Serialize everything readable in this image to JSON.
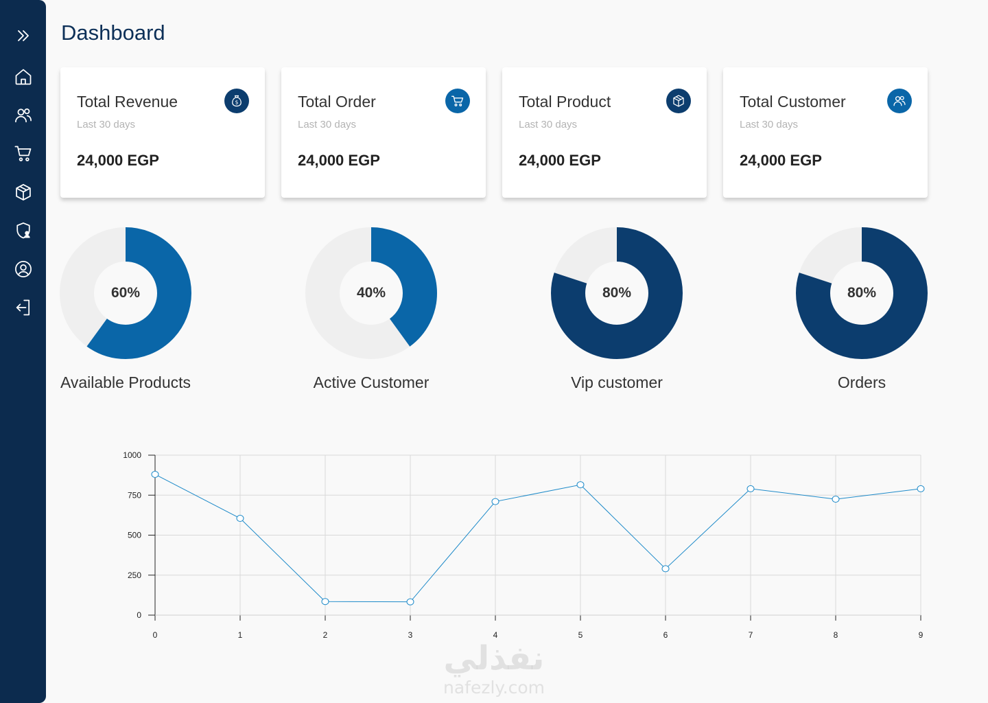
{
  "page": {
    "title": "Dashboard"
  },
  "sidebar": {
    "items": [
      {
        "name": "expand",
        "icon": "double-chevron-right-icon"
      },
      {
        "name": "home",
        "icon": "home-icon"
      },
      {
        "name": "users",
        "icon": "users-icon"
      },
      {
        "name": "cart",
        "icon": "cart-icon"
      },
      {
        "name": "products",
        "icon": "box-icon"
      },
      {
        "name": "security",
        "icon": "shield-user-icon"
      },
      {
        "name": "profile",
        "icon": "user-circle-icon"
      },
      {
        "name": "logout",
        "icon": "logout-icon"
      }
    ]
  },
  "cards": [
    {
      "title": "Total Revenue",
      "subtitle": "Last 30 days",
      "value": "24,000 EGP",
      "icon": "money-bag-icon",
      "icon_color": "#0c3d6e"
    },
    {
      "title": "Total Order",
      "subtitle": "Last 30 days",
      "value": "24,000 EGP",
      "icon": "cart-icon",
      "icon_color": "#0a66a8"
    },
    {
      "title": "Total Product",
      "subtitle": "Last 30 days",
      "value": "24,000 EGP",
      "icon": "box-icon",
      "icon_color": "#0c3d6e"
    },
    {
      "title": "Total Customer",
      "subtitle": "Last 30 days",
      "value": "24,000 EGP",
      "icon": "users-icon",
      "icon_color": "#0a66a8"
    }
  ],
  "donuts": [
    {
      "label": "Available Products",
      "percent": 60,
      "percent_text": "60%",
      "color": "#0a66a8"
    },
    {
      "label": "Active Customer",
      "percent": 40,
      "percent_text": "40%",
      "color": "#0a66a8"
    },
    {
      "label": "Vip customer",
      "percent": 80,
      "percent_text": "80%",
      "color": "#0c3d6e"
    },
    {
      "label": "Orders",
      "percent": 80,
      "percent_text": "80%",
      "color": "#0c3d6e"
    }
  ],
  "chart_data": {
    "type": "line",
    "x": [
      0,
      1,
      2,
      3,
      4,
      5,
      6,
      7,
      8,
      9
    ],
    "series": [
      {
        "values": [
          880,
          605,
          85,
          83,
          710,
          815,
          290,
          790,
          725,
          790
        ]
      }
    ],
    "x_ticks": [
      "0",
      "1",
      "2",
      "3",
      "4",
      "5",
      "6",
      "7",
      "8",
      "9"
    ],
    "y_ticks": [
      "0",
      "250",
      "500",
      "750",
      "1000"
    ],
    "ylim": [
      0,
      1000
    ],
    "xlim": [
      0,
      9
    ],
    "grid": true,
    "line_color": "#1d8ac9"
  },
  "watermark": {
    "arabic": "نفذلي",
    "latin": "nafezly.com"
  }
}
